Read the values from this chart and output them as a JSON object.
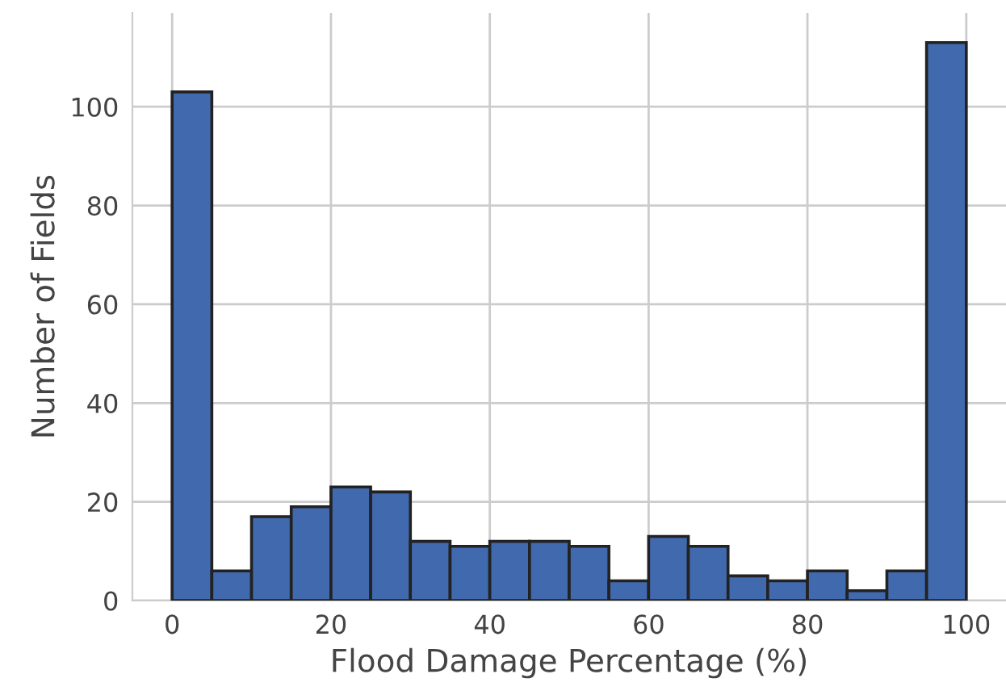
{
  "chart_data": {
    "type": "histogram",
    "xlabel": "Flood Damage Percentage (%)",
    "ylabel": "Number of Fields",
    "bins": [
      0,
      5,
      10,
      15,
      20,
      25,
      30,
      35,
      40,
      45,
      50,
      55,
      60,
      65,
      70,
      75,
      80,
      85,
      90,
      95,
      100
    ],
    "values": [
      103,
      6,
      17,
      19,
      23,
      22,
      12,
      11,
      12,
      12,
      11,
      4,
      13,
      11,
      5,
      4,
      6,
      2,
      6,
      113
    ],
    "color": "#4169ae",
    "xlim": [
      -5,
      105
    ],
    "ylim": [
      0,
      119
    ],
    "xticks": [
      0,
      20,
      40,
      60,
      80,
      100
    ],
    "yticks": [
      0,
      20,
      40,
      60,
      80,
      100
    ],
    "grid": true
  }
}
